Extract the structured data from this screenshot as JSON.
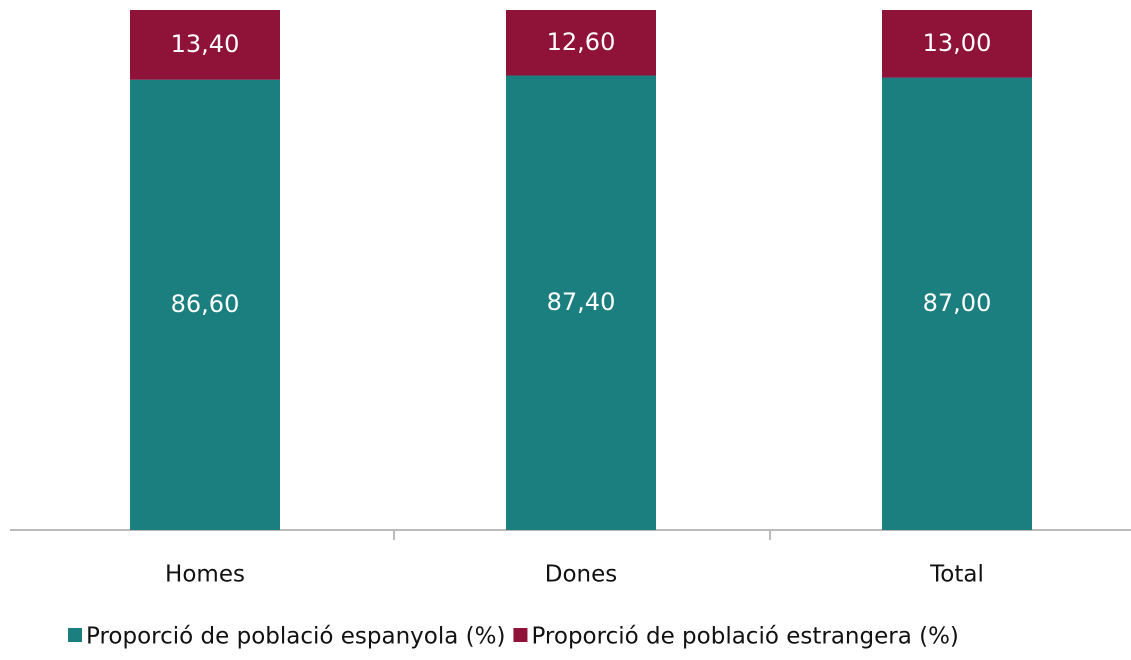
{
  "chart_data": {
    "type": "stacked_bar",
    "categories": [
      "Homes",
      "Dones",
      "Total"
    ],
    "series": [
      {
        "name": "Proporció de població espanyola (%)",
        "color": "#1a7f7e",
        "values": [
          86.6,
          87.4,
          87.0
        ],
        "value_labels": [
          "86,60",
          "87,40",
          "87,00"
        ]
      },
      {
        "name": "Proporció de població estrangera (%)",
        "color": "#8f1239",
        "values": [
          13.4,
          12.6,
          13.0
        ],
        "value_labels": [
          "13,40",
          "12,60",
          "13,00"
        ]
      }
    ],
    "ylim": [
      0,
      100
    ],
    "legend": "bottom"
  }
}
